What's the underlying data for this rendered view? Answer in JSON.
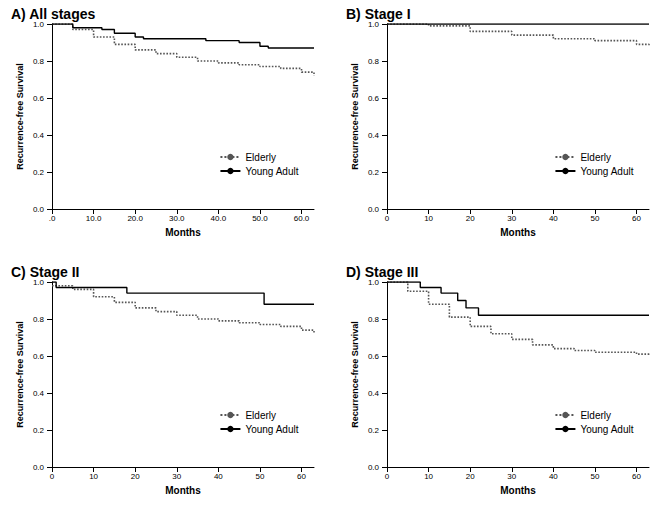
{
  "chart_data": [
    {
      "type": "step",
      "title": "A) All stages",
      "xlabel": "Months",
      "ylabel": "Recurrence-free Survival",
      "xlim": [
        0,
        63
      ],
      "xticks": [
        {
          "value": 0,
          "label": ".0"
        },
        {
          "value": 10,
          "label": "10.0"
        },
        {
          "value": 20,
          "label": "20.0"
        },
        {
          "value": 30,
          "label": "30.0"
        },
        {
          "value": 40,
          "label": "40.0"
        },
        {
          "value": 50,
          "label": "50.0"
        },
        {
          "value": 60,
          "label": "60.0"
        }
      ],
      "ylim": [
        0,
        1
      ],
      "yticks": [
        {
          "value": 0,
          "label": "0.0"
        },
        {
          "value": 0.2,
          "label": "0.2"
        },
        {
          "value": 0.4,
          "label": "0.4"
        },
        {
          "value": 0.6,
          "label": "0.6"
        },
        {
          "value": 0.8,
          "label": "0.8"
        },
        {
          "value": 1,
          "label": "1.0"
        }
      ],
      "grid": false,
      "legend": "lower right",
      "series": [
        {
          "name": "Elderly",
          "color": "#555555",
          "line_style": "dotted",
          "x": [
            0,
            5,
            10,
            15,
            20,
            25,
            30,
            35,
            40,
            45,
            50,
            55,
            60,
            63
          ],
          "values": [
            1.0,
            0.97,
            0.93,
            0.89,
            0.86,
            0.84,
            0.82,
            0.8,
            0.79,
            0.78,
            0.77,
            0.76,
            0.74,
            0.72
          ]
        },
        {
          "name": "Young Adult",
          "color": "#000000",
          "line_style": "solid",
          "x": [
            0,
            5,
            12,
            15,
            20,
            22,
            37,
            45,
            50,
            52,
            63
          ],
          "values": [
            1.0,
            0.98,
            0.97,
            0.95,
            0.93,
            0.92,
            0.91,
            0.9,
            0.88,
            0.87,
            0.87
          ]
        }
      ]
    },
    {
      "type": "step",
      "title": "B) Stage I",
      "xlabel": "Months",
      "ylabel": "Recurrence-free Survival",
      "xlim": [
        0,
        63
      ],
      "xticks": [
        0,
        10,
        20,
        30,
        40,
        50,
        60
      ],
      "ylim": [
        0,
        1
      ],
      "yticks": [
        {
          "value": 0,
          "label": "0.0"
        },
        {
          "value": 0.2,
          "label": "0.2"
        },
        {
          "value": 0.4,
          "label": "0.4"
        },
        {
          "value": 0.6,
          "label": "0.6"
        },
        {
          "value": 0.8,
          "label": "0.8"
        },
        {
          "value": 1,
          "label": "1.0"
        }
      ],
      "grid": false,
      "legend": "lower right",
      "series": [
        {
          "name": "Elderly",
          "color": "#555555",
          "line_style": "dotted",
          "x": [
            0,
            10,
            20,
            30,
            40,
            50,
            60,
            63
          ],
          "values": [
            1.0,
            0.99,
            0.96,
            0.94,
            0.92,
            0.91,
            0.89,
            0.88
          ]
        },
        {
          "name": "Young Adult",
          "color": "#000000",
          "line_style": "solid",
          "x": [
            0,
            63
          ],
          "values": [
            1.0,
            1.0
          ]
        }
      ]
    },
    {
      "type": "step",
      "title": "C) Stage II",
      "xlabel": "Months",
      "ylabel": "Recurrence-free Survival",
      "xlim": [
        0,
        63
      ],
      "xticks": [
        0,
        10,
        20,
        30,
        40,
        50,
        60
      ],
      "ylim": [
        0,
        1
      ],
      "yticks": [
        {
          "value": 0,
          "label": "0.0"
        },
        {
          "value": 0.2,
          "label": "0.2"
        },
        {
          "value": 0.4,
          "label": "0.4"
        },
        {
          "value": 0.6,
          "label": "0.6"
        },
        {
          "value": 0.8,
          "label": "0.8"
        },
        {
          "value": 1,
          "label": "1.0"
        }
      ],
      "grid": false,
      "legend": "lower right",
      "series": [
        {
          "name": "Elderly",
          "color": "#555555",
          "line_style": "dotted",
          "x": [
            0,
            5,
            10,
            15,
            20,
            25,
            30,
            35,
            40,
            45,
            50,
            55,
            60,
            63
          ],
          "values": [
            0.98,
            0.96,
            0.92,
            0.89,
            0.86,
            0.84,
            0.82,
            0.8,
            0.79,
            0.78,
            0.77,
            0.76,
            0.74,
            0.72
          ]
        },
        {
          "name": "Young Adult",
          "color": "#000000",
          "line_style": "solid",
          "x": [
            0,
            1,
            18,
            51,
            63
          ],
          "values": [
            1.0,
            0.97,
            0.94,
            0.88,
            0.88
          ]
        }
      ]
    },
    {
      "type": "step",
      "title": "D) Stage III",
      "xlabel": "Months",
      "ylabel": "Recurrence-free Survival",
      "xlim": [
        0,
        63
      ],
      "xticks": [
        0,
        10,
        20,
        30,
        40,
        50,
        60
      ],
      "ylim": [
        0,
        1
      ],
      "yticks": [
        {
          "value": 0,
          "label": "0.0"
        },
        {
          "value": 0.2,
          "label": "0.2"
        },
        {
          "value": 0.4,
          "label": "0.4"
        },
        {
          "value": 0.6,
          "label": "0.6"
        },
        {
          "value": 0.8,
          "label": "0.8"
        },
        {
          "value": 1,
          "label": "1.0"
        }
      ],
      "grid": false,
      "legend": "lower right",
      "series": [
        {
          "name": "Elderly",
          "color": "#555555",
          "line_style": "dotted",
          "x": [
            0,
            5,
            10,
            15,
            20,
            25,
            30,
            35,
            40,
            45,
            50,
            55,
            60,
            63
          ],
          "values": [
            1.0,
            0.95,
            0.88,
            0.81,
            0.76,
            0.72,
            0.69,
            0.66,
            0.64,
            0.63,
            0.62,
            0.62,
            0.61,
            0.6
          ]
        },
        {
          "name": "Young Adult",
          "color": "#000000",
          "line_style": "solid",
          "x": [
            0,
            8,
            13,
            17,
            19,
            22,
            63
          ],
          "values": [
            1.0,
            0.97,
            0.94,
            0.9,
            0.86,
            0.82,
            0.82
          ]
        }
      ]
    }
  ]
}
